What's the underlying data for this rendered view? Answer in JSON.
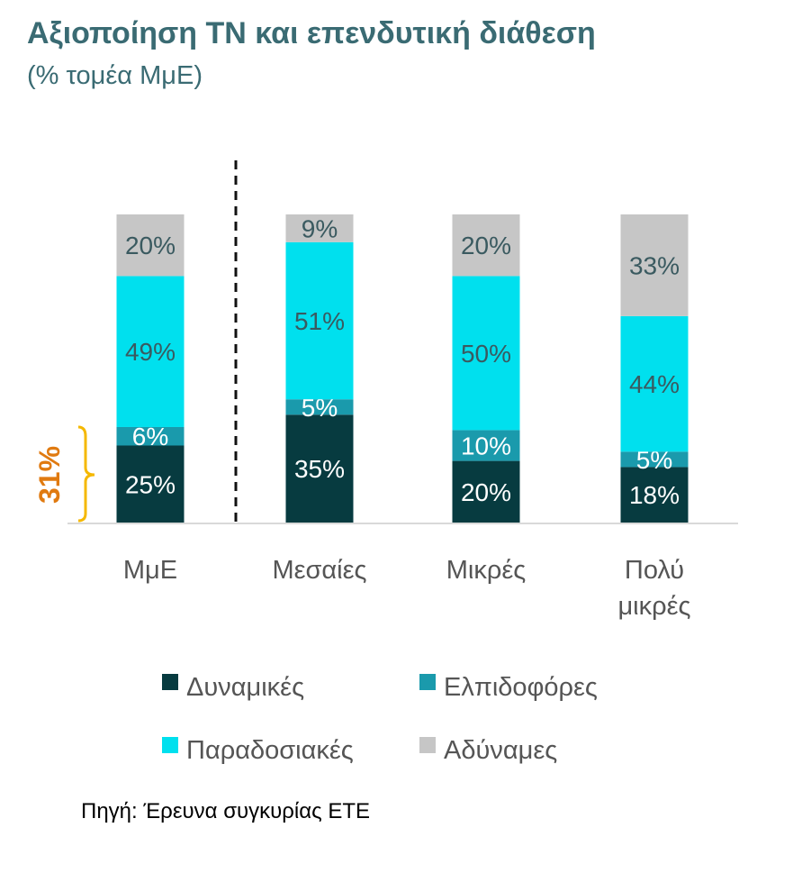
{
  "title": "Αξιοποίηση ΤΝ και επενδυτική διάθεση",
  "subtitle": "(% τομέα ΜμΕ)",
  "source": "Πηγή: Έρευνα συγκυρίας ΕΤΕ",
  "colors": {
    "dynamikes": "#073b40",
    "elpidoforoi": "#1a9aac",
    "paradosiakes": "#00e0ee",
    "adynames": "#c6c6c6",
    "bracket": "#f5b800",
    "bracket_label": "#e07a10",
    "title": "#3a6b73"
  },
  "chart_data": {
    "type": "bar",
    "stacked": true,
    "categories": [
      [
        "ΜμΕ"
      ],
      [
        "Μεσαίες"
      ],
      [
        "Μικρές"
      ],
      [
        "Πολύ",
        "μικρές"
      ]
    ],
    "series": [
      {
        "name": "Δυναμικές",
        "key": "dynamikes",
        "values": [
          25,
          35,
          20,
          18
        ],
        "labels": [
          "25%",
          "35%",
          "20%",
          "18%"
        ],
        "label_color": "#ffffff"
      },
      {
        "name": "Ελπιδοφόρες",
        "key": "elpidoforoi",
        "values": [
          6,
          5,
          10,
          5
        ],
        "labels": [
          "6%",
          "5%",
          "10%",
          "5%"
        ],
        "label_color": "#ffffff"
      },
      {
        "name": "Παραδοσιακές",
        "key": "paradosiakes",
        "values": [
          49,
          51,
          50,
          44
        ],
        "labels": [
          "49%",
          "51%",
          "50%",
          "44%"
        ],
        "label_color": "#3a5a60"
      },
      {
        "name": "Αδύναμες",
        "key": "adynames",
        "values": [
          20,
          9,
          20,
          33
        ],
        "labels": [
          "20%",
          "9%",
          "20%",
          "33%"
        ],
        "label_color": "#3a5a60"
      }
    ],
    "ylim": [
      0,
      100
    ],
    "legend_position": "bottom",
    "divider_after_category": 0,
    "annotation": {
      "label": "31%",
      "category_index": 0,
      "from": 0,
      "to": 31
    }
  }
}
